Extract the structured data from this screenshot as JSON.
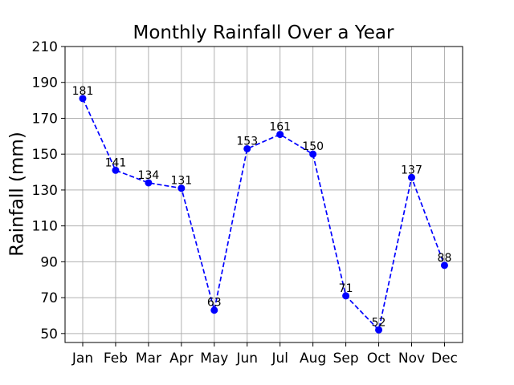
{
  "chart_data": {
    "type": "line",
    "title": "Monthly Rainfall Over a Year",
    "xlabel": "",
    "ylabel": "Rainfall (mm)",
    "categories": [
      "Jan",
      "Feb",
      "Mar",
      "Apr",
      "May",
      "Jun",
      "Jul",
      "Aug",
      "Sep",
      "Oct",
      "Nov",
      "Dec"
    ],
    "values": [
      181,
      141,
      134,
      131,
      63,
      153,
      161,
      150,
      71,
      52,
      137,
      88
    ],
    "data_labels": [
      "181",
      "141",
      "134",
      "131",
      "63",
      "153",
      "161",
      "150",
      "71",
      "52",
      "137",
      "88"
    ],
    "ylim": [
      45,
      210
    ],
    "yticks": [
      50,
      70,
      90,
      110,
      130,
      150,
      170,
      190,
      210
    ],
    "ytick_labels": [
      "50",
      "70",
      "90",
      "110",
      "130",
      "150",
      "170",
      "190",
      "210"
    ],
    "grid": true,
    "line_style": "dashed",
    "marker": "circle",
    "color": "#0000ff"
  }
}
